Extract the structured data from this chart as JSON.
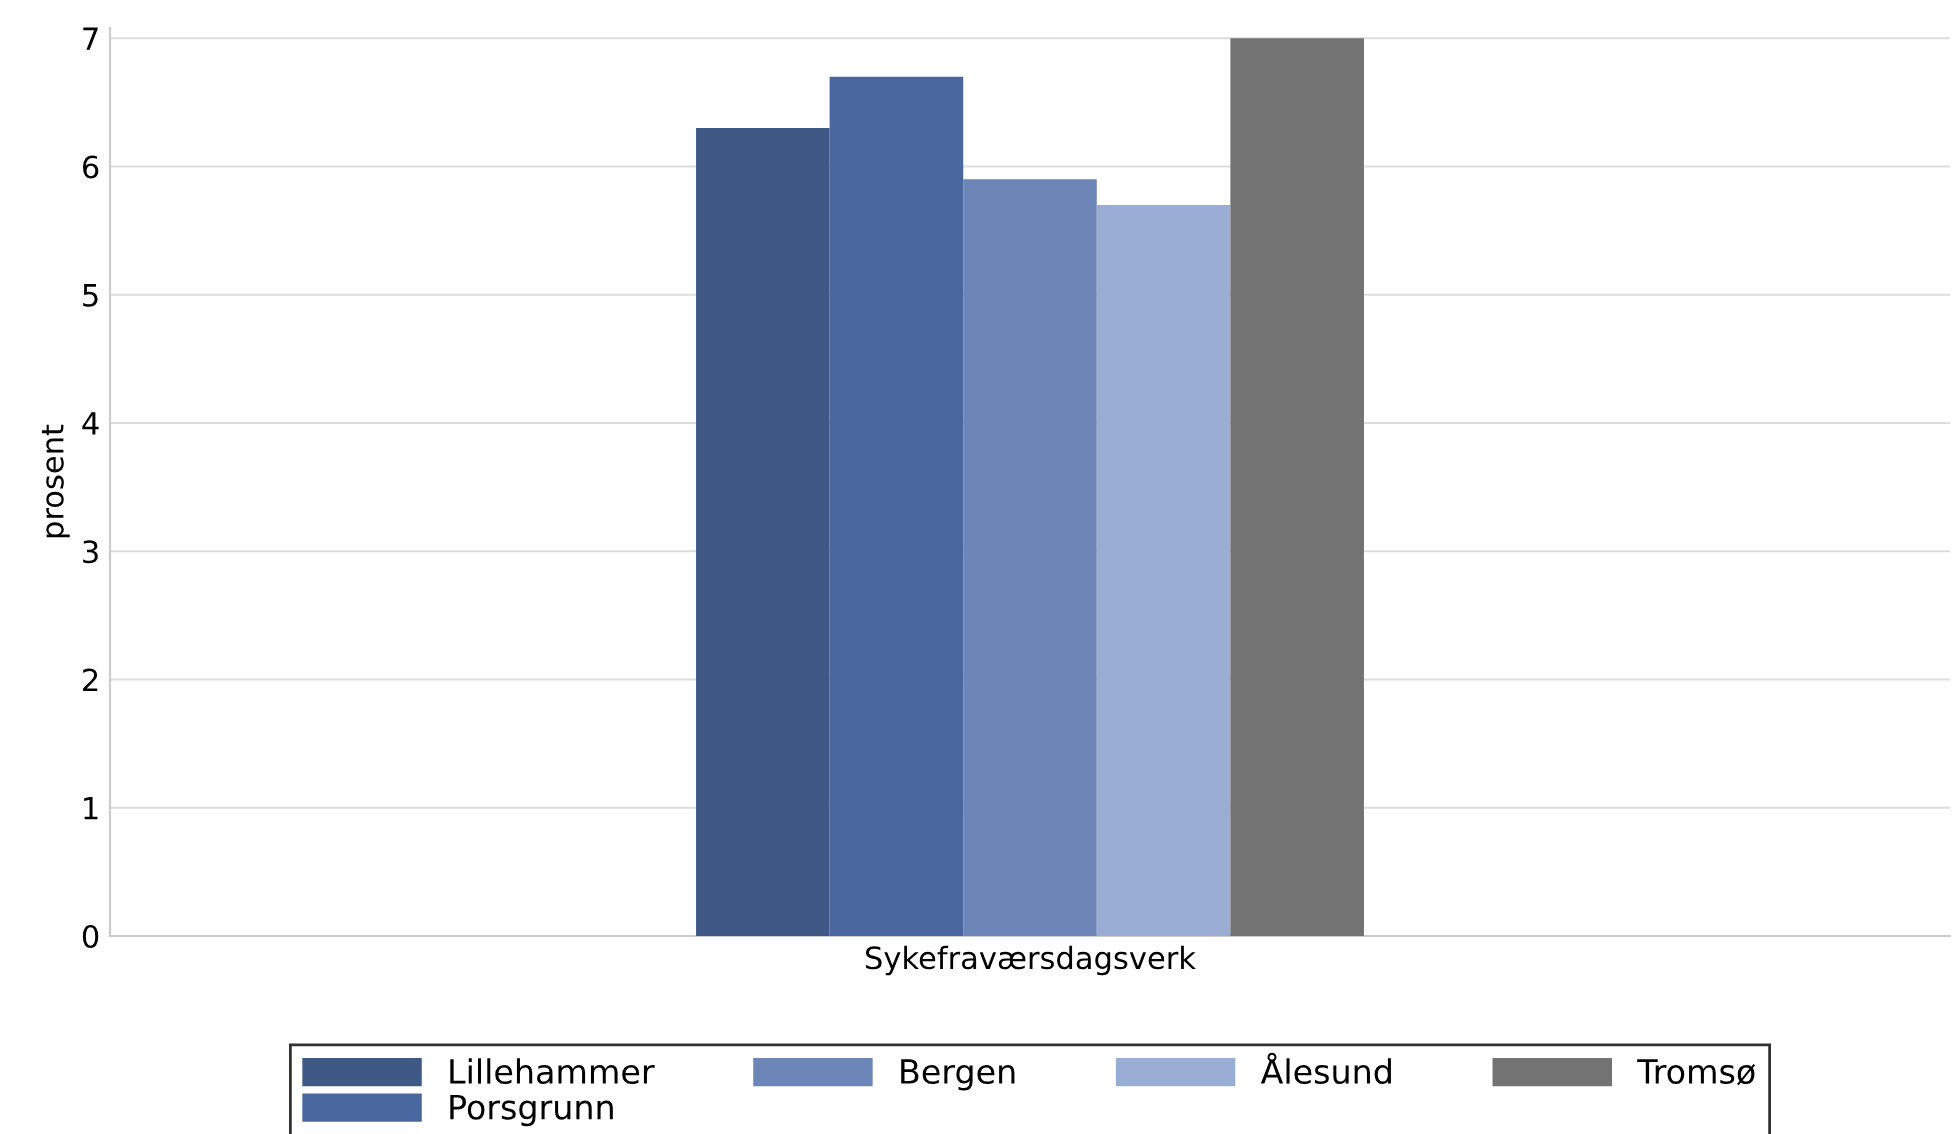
{
  "chart_data": {
    "type": "bar",
    "ylabel": "prosent",
    "categories": [
      "Sykefraværsdagsverk"
    ],
    "series": [
      {
        "name": "Lillehammer",
        "color": "#3f5987",
        "values": [
          6.3
        ]
      },
      {
        "name": "Porsgrunn",
        "color": "#4b67a0",
        "values": [
          6.7
        ]
      },
      {
        "name": "Bergen",
        "color": "#6c87b7",
        "values": [
          5.9
        ]
      },
      {
        "name": "Ålesund",
        "color": "#9aadd4",
        "values": [
          5.7
        ]
      },
      {
        "name": "Tromsø",
        "color": "#737373",
        "values": [
          7.0
        ]
      }
    ],
    "ylim": [
      0,
      7.08
    ],
    "yticks": [
      0,
      1,
      2,
      3,
      4,
      5,
      6,
      7
    ],
    "grid": "y",
    "legend": "bottom"
  }
}
